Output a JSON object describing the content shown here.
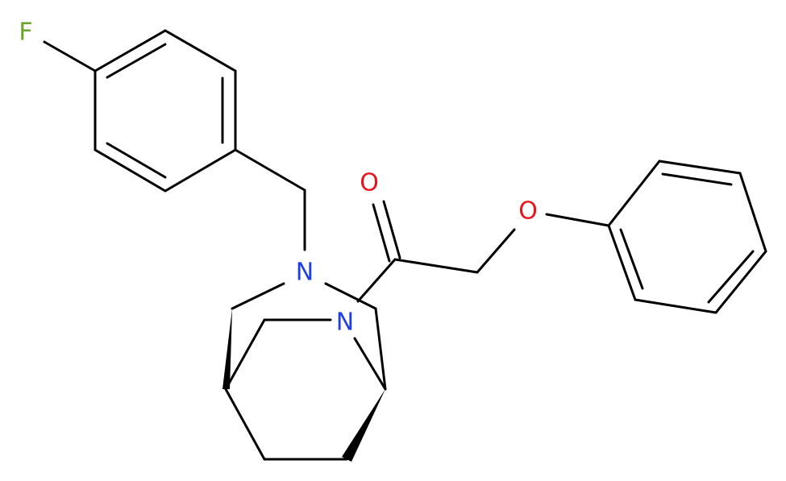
{
  "atoms": [
    {
      "label": "F"
    },
    {
      "label": "N"
    },
    {
      "label": "N"
    },
    {
      "label": "O"
    },
    {
      "label": "O"
    }
  ]
}
